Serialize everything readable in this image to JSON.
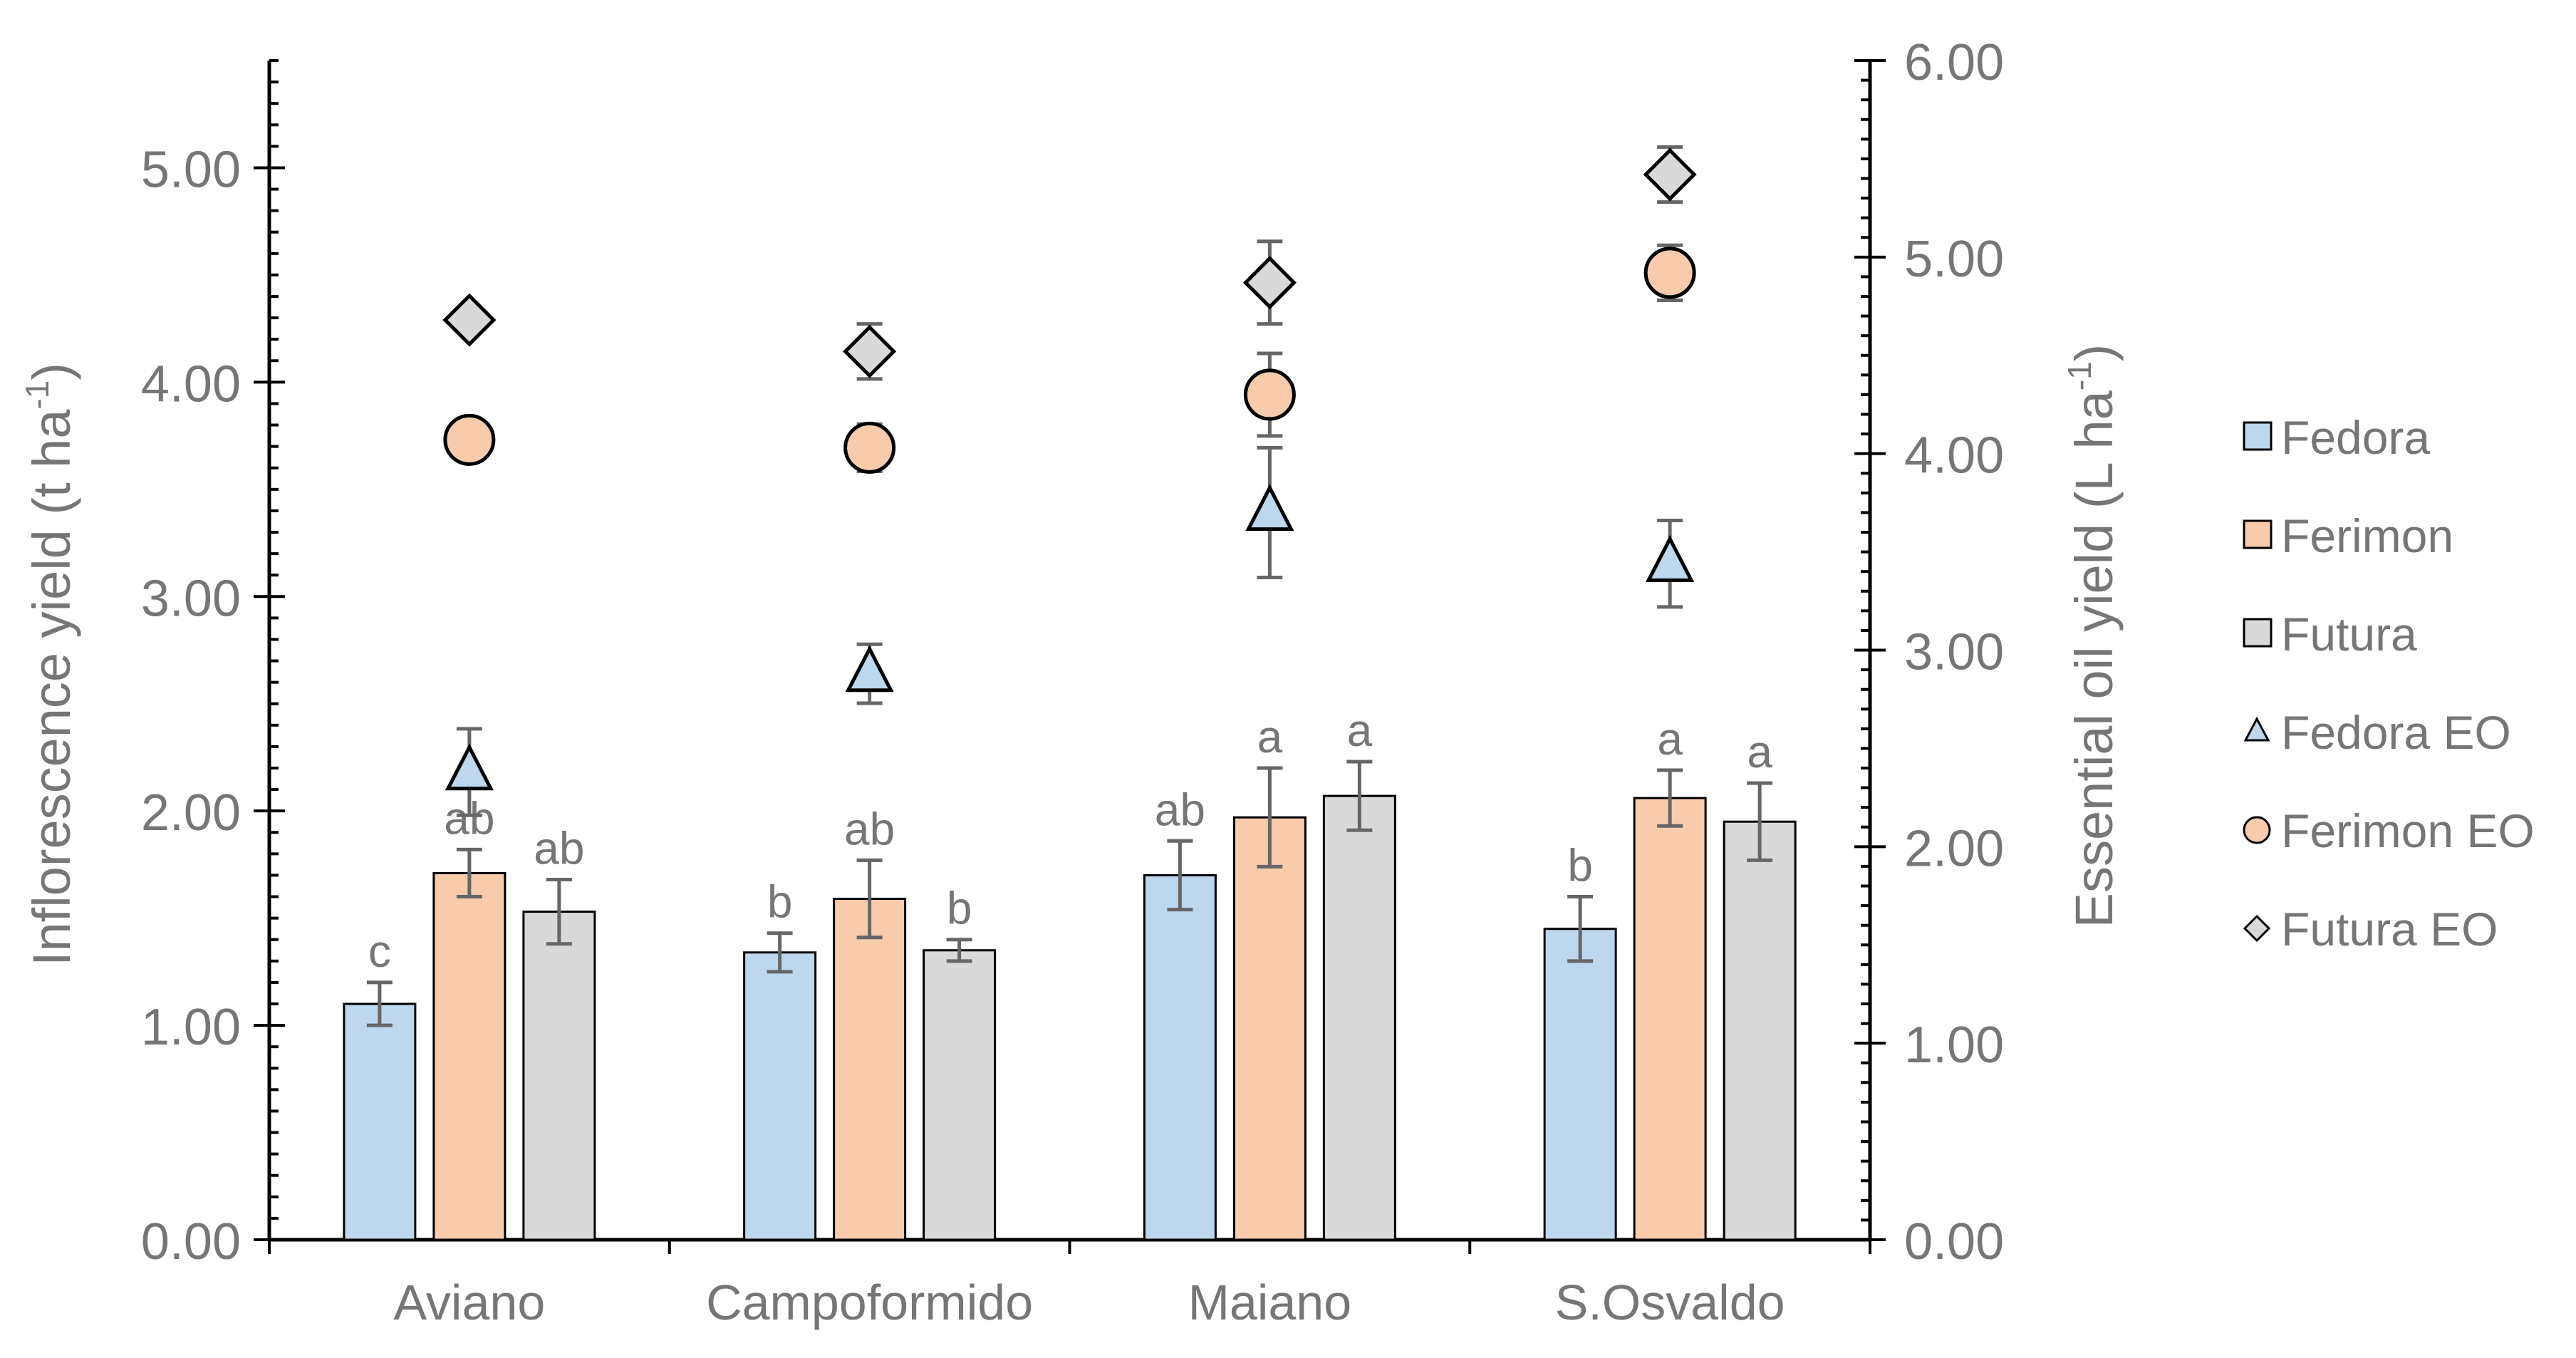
{
  "chart_data": {
    "type": "bar",
    "title": "",
    "categories": [
      "Aviano",
      "Campoformido",
      "Maiano",
      "S.Osvaldo"
    ],
    "ylabel_left": "Inflorescence yield (t ha",
    "ylabel_left_sup": "-1",
    "ylabel_left_close": ")",
    "ylabel_right": "Essential oil yield (L ha",
    "ylabel_right_sup": "-1",
    "ylabel_right_close": ")",
    "ylim_left": [
      0,
      5.5
    ],
    "ylim_right": [
      0,
      6.0
    ],
    "yticks_left": [
      "0.00",
      "1.00",
      "2.00",
      "3.00",
      "4.00",
      "5.00"
    ],
    "yticks_right": [
      "0.00",
      "1.00",
      "2.00",
      "3.00",
      "4.00",
      "5.00",
      "6.00"
    ],
    "bar_series": [
      {
        "name": "Fedora",
        "color": "#bdd7ee",
        "values": [
          1.1,
          1.34,
          1.7,
          1.45
        ],
        "errors": [
          0.1,
          0.09,
          0.16,
          0.15
        ],
        "letters": [
          "c",
          "b",
          "ab",
          "b"
        ]
      },
      {
        "name": "Ferimon",
        "color": "#f8cbad",
        "values": [
          1.71,
          1.59,
          1.97,
          2.06
        ],
        "errors": [
          0.11,
          0.18,
          0.23,
          0.13
        ],
        "letters": [
          "ab",
          "ab",
          "a",
          "a"
        ]
      },
      {
        "name": "Futura",
        "color": "#d9d9d9",
        "values": [
          1.53,
          1.35,
          2.07,
          1.95
        ],
        "errors": [
          0.15,
          0.05,
          0.16,
          0.18
        ],
        "letters": [
          "ab",
          "b",
          "a",
          "a"
        ]
      }
    ],
    "point_series": [
      {
        "name": "Fedora EO",
        "marker": "triangle",
        "color": "#bdd7ee",
        "values": [
          2.38,
          2.88,
          3.7,
          3.44
        ],
        "errors": [
          0.22,
          0.15,
          0.33,
          0.22
        ]
      },
      {
        "name": "Ferimon EO",
        "marker": "circle",
        "color": "#f8cbad",
        "values": [
          4.07,
          4.03,
          4.3,
          4.92
        ],
        "errors": [
          0.0,
          0.12,
          0.21,
          0.14
        ]
      },
      {
        "name": "Futura EO",
        "marker": "diamond",
        "color": "#d9d9d9",
        "values": [
          4.68,
          4.52,
          4.87,
          5.42
        ],
        "errors": [
          0.0,
          0.14,
          0.21,
          0.14
        ]
      }
    ],
    "legend": [
      "Fedora",
      "Ferimon",
      "Futura",
      "Fedora EO",
      "Ferimon EO",
      "Futura EO"
    ],
    "legend_position": "right"
  }
}
